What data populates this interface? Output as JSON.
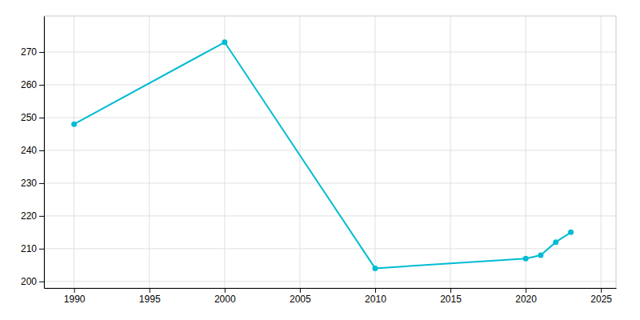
{
  "chart_data": {
    "type": "line",
    "x": [
      1990,
      2000,
      2010,
      2020,
      2021,
      2022,
      2023
    ],
    "values": [
      248,
      273,
      204,
      207,
      208,
      212,
      215
    ],
    "color": "#00BCD4",
    "marker": "circle",
    "xlim": [
      1988,
      2026
    ],
    "ylim": [
      198,
      281
    ],
    "xticks": [
      1990,
      1995,
      2000,
      2005,
      2010,
      2015,
      2020,
      2025
    ],
    "yticks": [
      200,
      210,
      220,
      230,
      240,
      250,
      260,
      270
    ],
    "grid": true
  }
}
